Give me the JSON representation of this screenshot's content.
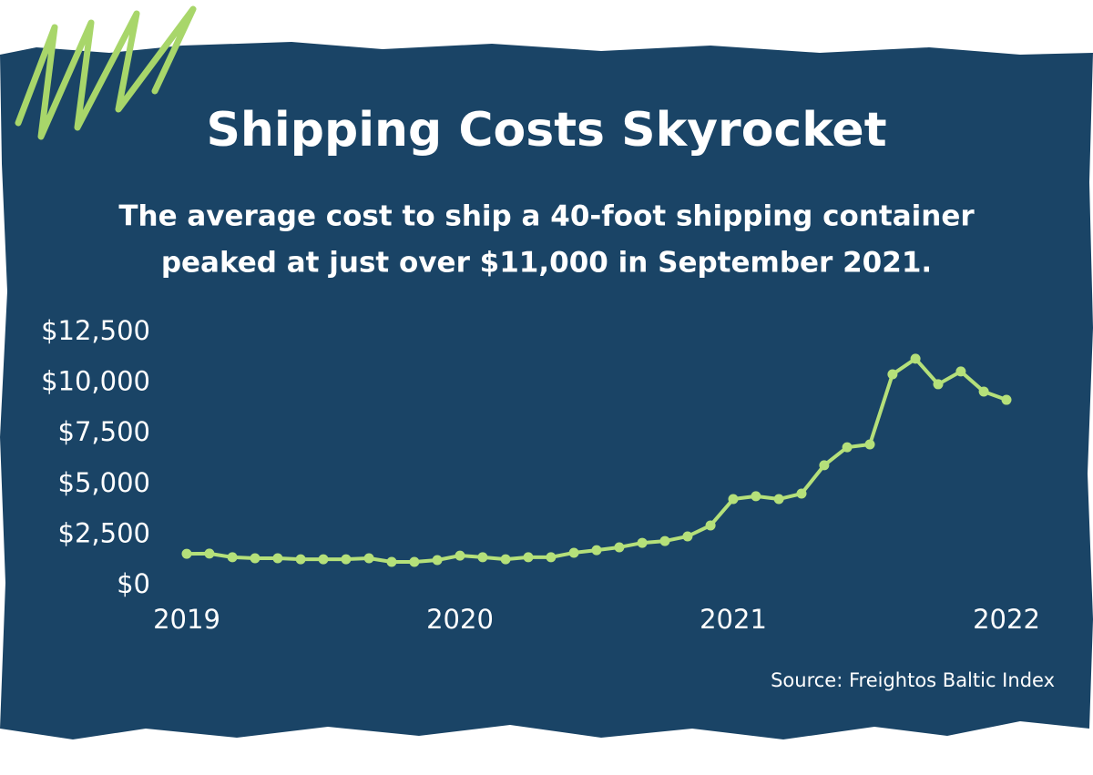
{
  "chart_data": {
    "type": "line",
    "title": "Shipping Costs Skyrocket",
    "subtitle": [
      "The average cost to ship a 40-foot shipping container",
      "peaked at just over $11,000 in September 2021."
    ],
    "source": "Source: Freightos Baltic Index",
    "x": [
      2019,
      2019.083,
      2019.167,
      2019.25,
      2019.333,
      2019.417,
      2019.5,
      2019.583,
      2019.667,
      2019.75,
      2019.833,
      2019.917,
      2020,
      2020.083,
      2020.167,
      2020.25,
      2020.333,
      2020.417,
      2020.5,
      2020.583,
      2020.667,
      2020.75,
      2020.833,
      2020.917,
      2021,
      2021.083,
      2021.167,
      2021.25,
      2021.333,
      2021.417,
      2021.5,
      2021.583,
      2021.667,
      2021.75,
      2021.833,
      2021.917,
      2022
    ],
    "series": [
      {
        "color": "#b5e07a",
        "values": [
          1570,
          1580,
          1400,
          1350,
          1350,
          1300,
          1300,
          1300,
          1350,
          1170,
          1170,
          1260,
          1480,
          1400,
          1300,
          1400,
          1400,
          1620,
          1750,
          1890,
          2110,
          2200,
          2430,
          2970,
          4270,
          4410,
          4270,
          4540,
          5940,
          6830,
          6970,
          10430,
          11200,
          9940,
          10570,
          9580,
          9170
        ]
      }
    ],
    "xlim": [
      2019,
      2022
    ],
    "xticks": [
      2019,
      2020,
      2021,
      2022
    ],
    "ylim": [
      0,
      12500
    ],
    "yticks": [
      {
        "value": 0,
        "label": "$0"
      },
      {
        "value": 2500,
        "label": "$2,500"
      },
      {
        "value": 5000,
        "label": "$5,000"
      },
      {
        "value": 7500,
        "label": "$7,500"
      },
      {
        "value": 10000,
        "label": "$10,000"
      },
      {
        "value": 12500,
        "label": "$12,500"
      }
    ],
    "grid": false
  }
}
